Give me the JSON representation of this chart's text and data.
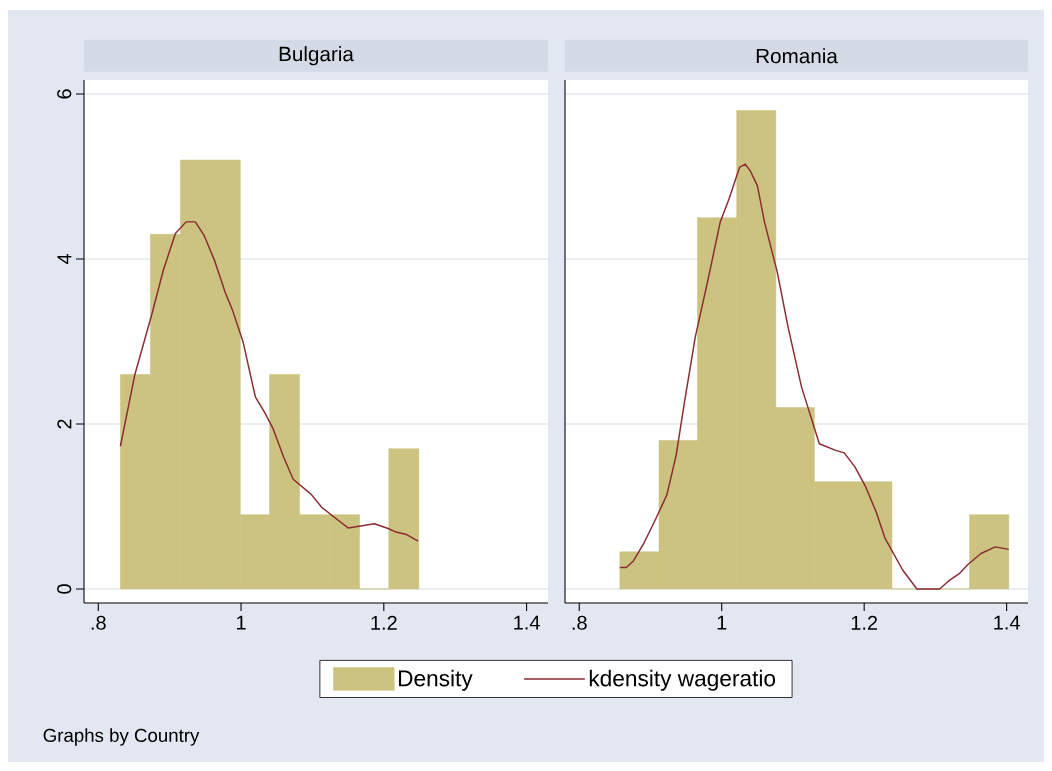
{
  "chart_data": [
    {
      "type": "histogram",
      "title": "Bulgaria",
      "xlim": [
        0.78,
        1.43
      ],
      "ylim": [
        -0.17,
        6.17
      ],
      "xticks": [
        {
          "value": 0.8,
          "label": ".8"
        },
        1,
        1.2,
        1.4
      ],
      "yticks": [
        0,
        2,
        4,
        6
      ],
      "grid": "y",
      "legend": "bottom",
      "annotations": [
        "Graphs by Country"
      ],
      "series": [
        {
          "name": "Density",
          "type": "histogram",
          "color": "#cbc37f",
          "bins": [
            0.831,
            0.873,
            0.915,
            0.957,
            0.999,
            1.04,
            1.082,
            1.124,
            1.166,
            1.207,
            1.249
          ],
          "values": [
            2.6,
            4.3,
            5.2,
            5.2,
            0.9,
            2.6,
            0.9,
            0.9,
            0,
            1.7
          ]
        },
        {
          "name": "kdensity wageratio",
          "type": "line",
          "color": "#8b2b33",
          "x": [
            0.831,
            0.851,
            0.864,
            0.876,
            0.891,
            0.908,
            0.923,
            0.936,
            0.948,
            0.963,
            0.978,
            0.988,
            1.003,
            1.02,
            1.033,
            1.045,
            1.06,
            1.073,
            1.098,
            1.113,
            1.132,
            1.15,
            1.172,
            1.187,
            1.207,
            1.217,
            1.232,
            1.248
          ],
          "values": [
            1.73,
            2.59,
            2.99,
            3.36,
            3.86,
            4.31,
            4.45,
            4.45,
            4.29,
            3.98,
            3.59,
            3.38,
            2.99,
            2.33,
            2.14,
            1.94,
            1.59,
            1.33,
            1.15,
            0.99,
            0.86,
            0.74,
            0.77,
            0.79,
            0.73,
            0.69,
            0.66,
            0.58
          ]
        }
      ]
    },
    {
      "type": "histogram",
      "title": "Romania",
      "xlim": [
        0.78,
        1.43
      ],
      "ylim": [
        -0.17,
        6.17
      ],
      "xticks": [
        {
          "value": 0.8,
          "label": ".8"
        },
        1,
        1.2,
        1.4
      ],
      "yticks": [
        0,
        2,
        4,
        6
      ],
      "grid": "y",
      "tick_labels": "x",
      "series": [
        {
          "type": "histogram",
          "color": "#cbc37f",
          "bins": [
            0.857,
            0.912,
            0.966,
            1.021,
            1.076,
            1.13,
            1.185,
            1.239,
            1.294,
            1.348,
            1.403
          ],
          "values": [
            0.45,
            1.8,
            4.5,
            5.8,
            2.2,
            1.3,
            1.3,
            0,
            0,
            0.9
          ]
        },
        {
          "type": "line",
          "color": "#8b2b33",
          "x": [
            0.857,
            0.866,
            0.876,
            0.891,
            0.908,
            0.923,
            0.936,
            0.948,
            0.963,
            0.981,
            0.998,
            1.01,
            1.025,
            1.033,
            1.04,
            1.05,
            1.06,
            1.078,
            1.093,
            1.112,
            1.137,
            1.16,
            1.172,
            1.187,
            1.202,
            1.217,
            1.229,
            1.254,
            1.274,
            1.306,
            1.319,
            1.334,
            1.346,
            1.364,
            1.384,
            1.403
          ],
          "values": [
            0.26,
            0.26,
            0.34,
            0.56,
            0.86,
            1.14,
            1.62,
            2.28,
            3.06,
            3.76,
            4.45,
            4.72,
            5.11,
            5.15,
            5.07,
            4.89,
            4.45,
            3.84,
            3.18,
            2.45,
            1.76,
            1.68,
            1.65,
            1.48,
            1.24,
            0.93,
            0.62,
            0.23,
            0,
            0,
            0.1,
            0.19,
            0.3,
            0.43,
            0.51,
            0.48
          ]
        }
      ]
    }
  ]
}
